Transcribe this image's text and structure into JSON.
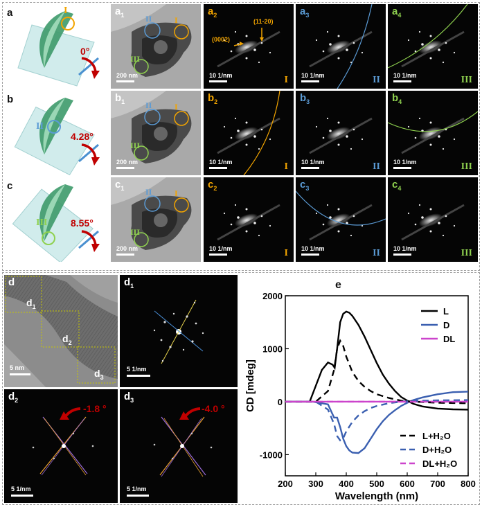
{
  "top": {
    "rows": [
      {
        "side_label": "a",
        "angle": "0°",
        "region": "I",
        "tem": {
          "label": "a",
          "sub": "1",
          "scale": "200 nm"
        },
        "saed": [
          {
            "label": "a",
            "sub": "2",
            "scale": "10 1/nm",
            "region": "I",
            "color": "#f2a400",
            "ann1": "(0002)",
            "ann2": "(11-20)"
          },
          {
            "label": "a",
            "sub": "3",
            "scale": "10 1/nm",
            "region": "II",
            "color": "#5b9bd5"
          },
          {
            "label": "a",
            "sub": "4",
            "scale": "10 1/nm",
            "region": "III",
            "color": "#8fd14f"
          }
        ]
      },
      {
        "side_label": "b",
        "angle": "4.28°",
        "region": "II",
        "tem": {
          "label": "b",
          "sub": "1",
          "scale": "200 nm"
        },
        "saed": [
          {
            "label": "b",
            "sub": "2",
            "scale": "10 1/nm",
            "region": "I",
            "color": "#f2a400"
          },
          {
            "label": "b",
            "sub": "3",
            "scale": "10 1/nm",
            "region": "II",
            "color": "#5b9bd5"
          },
          {
            "label": "b",
            "sub": "4",
            "scale": "10 1/nm",
            "region": "III",
            "color": "#8fd14f"
          }
        ]
      },
      {
        "side_label": "c",
        "angle": "8.55°",
        "region": "III",
        "tem": {
          "label": "c",
          "sub": "1",
          "scale": "200 nm"
        },
        "saed": [
          {
            "label": "c",
            "sub": "2",
            "scale": "10 1/nm",
            "region": "I",
            "color": "#f2a400"
          },
          {
            "label": "c",
            "sub": "3",
            "scale": "10 1/nm",
            "region": "II",
            "color": "#5b9bd5"
          },
          {
            "label": "c",
            "sub": "4",
            "scale": "10 1/nm",
            "region": "III",
            "color": "#8fd14f"
          }
        ]
      }
    ],
    "tem_circle_labels": [
      "I",
      "II",
      "III"
    ]
  },
  "bottom": {
    "d": {
      "label": "d",
      "scale": "5 nm",
      "box1": "d",
      "box1_sub": "1",
      "box2": "d",
      "box2_sub": "2",
      "box3": "d",
      "box3_sub": "3"
    },
    "d1": {
      "label": "d",
      "sub": "1",
      "scale": "5 1/nm"
    },
    "d2": {
      "label": "d",
      "sub": "2",
      "scale": "5 1/nm",
      "angle": "-1.8 °"
    },
    "d3": {
      "label": "d",
      "sub": "3",
      "scale": "5 1/nm",
      "angle": "-4.0 °"
    }
  },
  "chart_data": {
    "type": "line",
    "panel_label": "e",
    "xlabel": "Wavelength (nm)",
    "ylabel": "CD [mdeg]",
    "xlim": [
      200,
      800
    ],
    "ylim": [
      -1400,
      2000
    ],
    "xticks": [
      "200",
      "300",
      "400",
      "500",
      "600",
      "700",
      "800"
    ],
    "yticks": [
      "-1000",
      "0",
      "1000",
      "2000"
    ],
    "legend_top": [
      "L",
      "D",
      "DL"
    ],
    "legend_bottom": [
      "L+H₂O",
      "D+H₂O",
      "DL+H₂O"
    ],
    "series": [
      {
        "name": "L",
        "color": "#000000",
        "dash": false,
        "x": [
          200,
          280,
          300,
          320,
          340,
          355,
          362,
          370,
          380,
          390,
          400,
          410,
          420,
          440,
          460,
          480,
          500,
          520,
          540,
          560,
          580,
          600,
          620,
          650,
          700,
          750,
          800
        ],
        "y": [
          0,
          0,
          300,
          600,
          740,
          700,
          640,
          1000,
          1500,
          1660,
          1700,
          1680,
          1620,
          1450,
          1230,
          980,
          730,
          510,
          340,
          200,
          90,
          20,
          -40,
          -90,
          -130,
          -145,
          -150
        ]
      },
      {
        "name": "D",
        "color": "#3a5fb0",
        "dash": false,
        "x": [
          200,
          290,
          320,
          340,
          360,
          370,
          380,
          390,
          400,
          410,
          420,
          440,
          460,
          480,
          500,
          520,
          540,
          560,
          580,
          600,
          620,
          650,
          700,
          750,
          800
        ],
        "y": [
          0,
          0,
          -30,
          -50,
          -300,
          -300,
          -480,
          -700,
          -840,
          -920,
          -960,
          -970,
          -880,
          -700,
          -520,
          -370,
          -250,
          -160,
          -80,
          -20,
          30,
          80,
          140,
          180,
          190
        ]
      },
      {
        "name": "DL",
        "color": "#cc44cc",
        "dash": false,
        "x": [
          200,
          800
        ],
        "y": [
          0,
          0
        ]
      },
      {
        "name": "L+H₂O",
        "color": "#000000",
        "dash": true,
        "x": [
          200,
          300,
          340,
          360,
          370,
          380,
          390,
          400,
          420,
          440,
          460,
          480,
          500,
          540,
          580,
          620,
          700,
          800
        ],
        "y": [
          0,
          0,
          200,
          600,
          1000,
          1150,
          1050,
          850,
          560,
          390,
          280,
          200,
          140,
          70,
          20,
          0,
          -20,
          -30
        ]
      },
      {
        "name": "D+H₂O",
        "color": "#3a5fb0",
        "dash": true,
        "x": [
          200,
          300,
          340,
          360,
          370,
          380,
          390,
          400,
          420,
          440,
          460,
          480,
          500,
          540,
          580,
          620,
          700,
          800
        ],
        "y": [
          0,
          0,
          -150,
          -420,
          -650,
          -730,
          -690,
          -560,
          -380,
          -260,
          -180,
          -120,
          -80,
          -30,
          0,
          15,
          25,
          30
        ]
      },
      {
        "name": "DL+H₂O",
        "color": "#cc44cc",
        "dash": true,
        "x": [
          200,
          800
        ],
        "y": [
          0,
          0
        ]
      }
    ]
  }
}
